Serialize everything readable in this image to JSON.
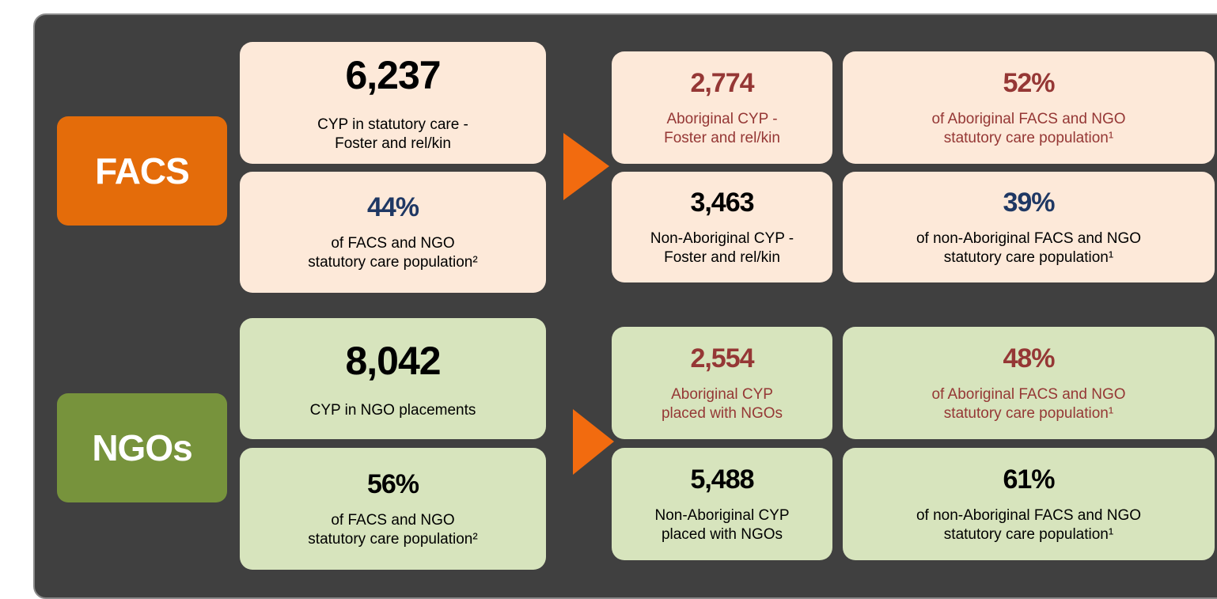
{
  "sections": [
    {
      "label": "FACS",
      "boxes": [
        {
          "value": "6,237",
          "lines": [
            "CYP in statutory care -",
            "Foster and rel/kin"
          ]
        },
        {
          "value": "44%",
          "lines": [
            "of FACS and NGO",
            "statutory care population²"
          ]
        },
        {
          "value": "2,774",
          "lines": [
            "Aboriginal CYP -",
            "Foster and rel/kin"
          ]
        },
        {
          "value": "52%",
          "lines": [
            "of Aboriginal FACS and NGO",
            "statutory care population¹"
          ]
        },
        {
          "value": "3,463",
          "lines": [
            "Non-Aboriginal CYP -",
            "Foster and rel/kin"
          ]
        },
        {
          "value": "39%",
          "lines": [
            "of non-Aboriginal FACS and NGO",
            "statutory care population¹"
          ]
        }
      ]
    },
    {
      "label": "NGOs",
      "boxes": [
        {
          "value": "8,042",
          "lines": [
            "CYP in NGO placements"
          ]
        },
        {
          "value": "56%",
          "lines": [
            "of FACS and NGO",
            "statutory care population²"
          ]
        },
        {
          "value": "2,554",
          "lines": [
            "Aboriginal CYP",
            "placed with NGOs"
          ]
        },
        {
          "value": "48%",
          "lines": [
            "of Aboriginal FACS and NGO",
            "statutory care population¹"
          ]
        },
        {
          "value": "5,488",
          "lines": [
            "Non-Aboriginal CYP",
            "placed with NGOs"
          ]
        },
        {
          "value": "61%",
          "lines": [
            "of non-Aboriginal FACS and NGO",
            "statutory care population¹"
          ]
        }
      ]
    }
  ]
}
